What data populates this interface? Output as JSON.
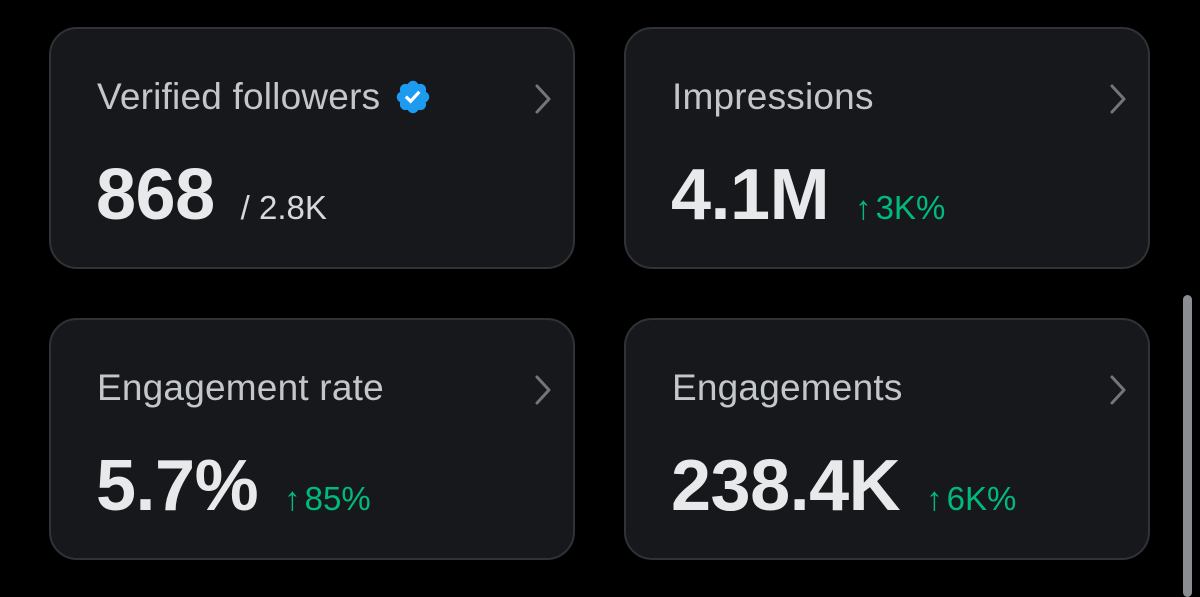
{
  "cards": [
    {
      "title": "Verified followers",
      "value": "868",
      "secondary": "/ 2.8K",
      "icon": "verified-badge-icon"
    },
    {
      "title": "Impressions",
      "value": "4.1M",
      "delta_arrow": "↑",
      "delta": "3K%"
    },
    {
      "title": "Engagement rate",
      "value": "5.7%",
      "delta_arrow": "↑",
      "delta": "85%"
    },
    {
      "title": "Engagements",
      "value": "238.4K",
      "delta_arrow": "↑",
      "delta": "6K%"
    }
  ],
  "colors": {
    "background": "#000000",
    "card_background": "#16181c",
    "card_border": "#2f3336",
    "title_text": "#c4c7ca",
    "value_text": "#e7e9ea",
    "positive_delta": "#00ba7c",
    "verified_badge": "#1d9bf0",
    "chevron": "#71767b"
  }
}
